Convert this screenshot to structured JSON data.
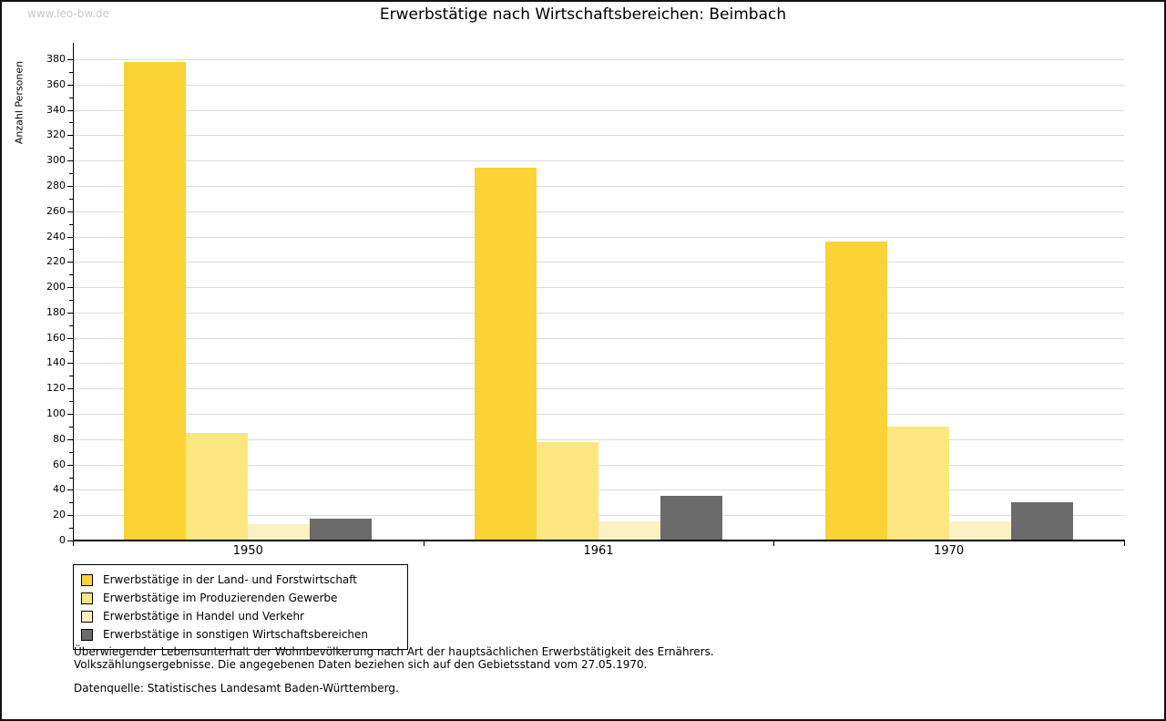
{
  "watermark": "www.leo-bw.de",
  "title": "Erwerbstätige nach Wirtschaftsbereichen: Beimbach",
  "chart_data": {
    "type": "bar",
    "title": "Erwerbstätige nach Wirtschaftsbereichen: Beimbach",
    "xlabel": "",
    "ylabel": "Anzahl Personen",
    "ylim": [
      0,
      380
    ],
    "ytick_step": 20,
    "yminor_step": 10,
    "grid": true,
    "legend_position": "bottom-left",
    "categories": [
      "1950",
      "1961",
      "1970"
    ],
    "series": [
      {
        "name": "Erwerbstätige in der Land- und Forstwirtschaft",
        "color": "#FBD335",
        "values": [
          378,
          294,
          236
        ]
      },
      {
        "name": "Erwerbstätige im Produzierenden Gewerbe",
        "color": "#FCE680",
        "values": [
          85,
          78,
          90
        ]
      },
      {
        "name": "Erwerbstätige in Handel und Verkehr",
        "color": "#FAF2C3",
        "values": [
          13,
          15,
          15
        ]
      },
      {
        "name": "Erwerbstätige in sonstigen Wirtschaftsbereichen",
        "color": "#6B6B6B",
        "values": [
          17,
          35,
          30
        ]
      }
    ]
  },
  "footnotes": {
    "line1": "Überwiegender Lebensunterhalt der Wohnbevölkerung nach Art der hauptsächlichen Erwerbstätigkeit des Ernährers.",
    "line2": "Volkszählungsergebnisse. Die angegebenen Daten beziehen sich auf den Gebietsstand vom 27.05.1970.",
    "source": "Datenquelle: Statistisches Landesamt Baden-Württemberg."
  }
}
